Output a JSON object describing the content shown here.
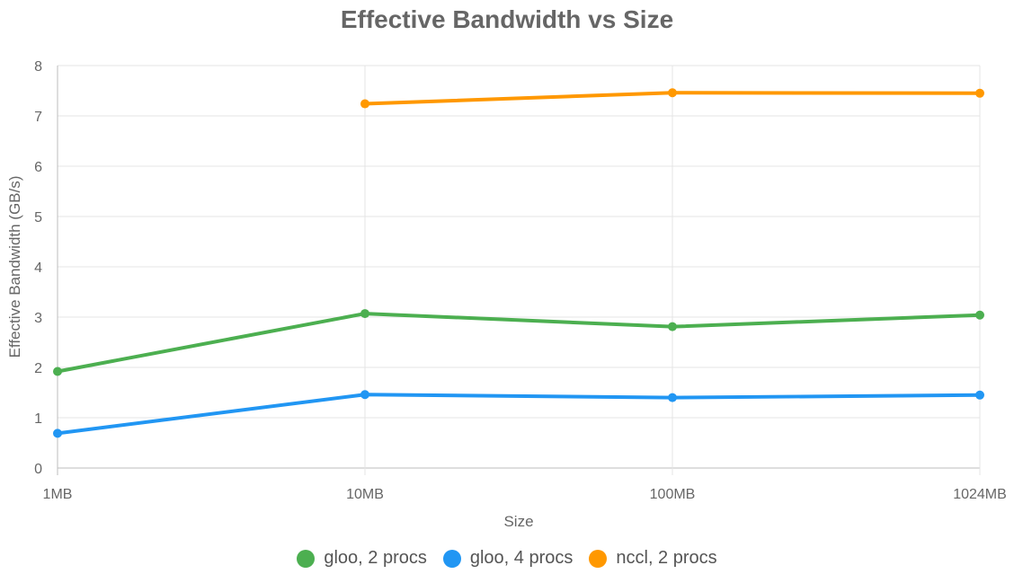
{
  "chart_data": {
    "type": "line",
    "title": "Effective Bandwidth vs Size",
    "xlabel": "Size",
    "ylabel": "Effective Bandwidth (GB/s)",
    "categories": [
      "1MB",
      "10MB",
      "100MB",
      "1024MB"
    ],
    "ylim": [
      0,
      8
    ],
    "yticks": [
      "0",
      "1",
      "2",
      "3",
      "4",
      "5",
      "6",
      "7",
      "8"
    ],
    "grid": true,
    "legend_position": "bottom",
    "series": [
      {
        "name": "gloo, 2 procs",
        "color": "#4caf50",
        "values": [
          1.92,
          3.07,
          2.81,
          3.04
        ]
      },
      {
        "name": "gloo, 4 procs",
        "color": "#2196f3",
        "values": [
          0.69,
          1.46,
          1.4,
          1.45
        ]
      },
      {
        "name": "nccl, 2 procs",
        "color": "#ff9800",
        "values": [
          null,
          7.24,
          7.46,
          7.45
        ]
      }
    ]
  }
}
